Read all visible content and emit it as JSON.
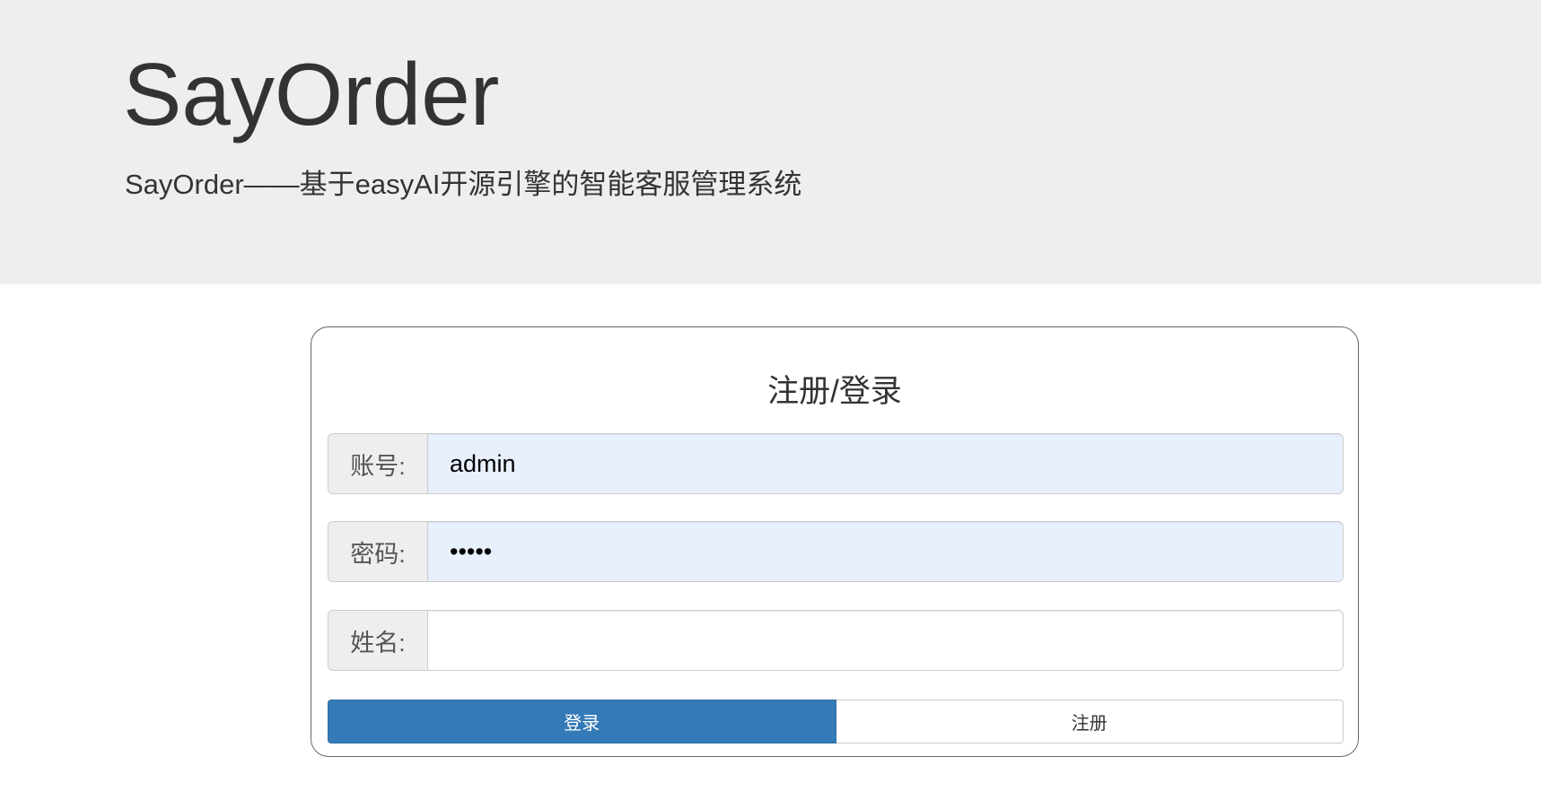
{
  "header": {
    "title": "SayOrder",
    "subtitle": "SayOrder——基于easyAI开源引擎的智能客服管理系统"
  },
  "form": {
    "title": "注册/登录",
    "account": {
      "label": "账号:",
      "value": "admin"
    },
    "password": {
      "label": "密码:",
      "value": "•••••"
    },
    "name": {
      "label": "姓名:",
      "value": ""
    },
    "login_label": "登录",
    "register_label": "注册"
  },
  "colors": {
    "primary": "#337ab7",
    "header_bg": "#eeeeee",
    "autofill_bg": "#e8f0fe"
  }
}
